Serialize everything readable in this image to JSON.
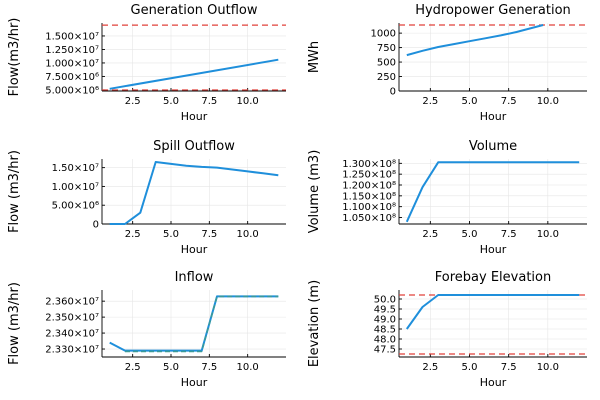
{
  "colors": {
    "series": "#1f8fdb",
    "series2": "#3a9a9a",
    "reference": "#e0403a"
  },
  "chart_data": [
    {
      "id": "generation-outflow",
      "type": "line",
      "title": "Generation Outflow",
      "xlabel": "Hour",
      "ylabel": "Flow(m3/hr)",
      "xlim": [
        0.5,
        12.5
      ],
      "ylim": [
        4800000,
        17400000
      ],
      "xticks": [
        2.5,
        5.0,
        7.5,
        10.0
      ],
      "xtick_labels": [
        "2.5",
        "5.0",
        "7.5",
        "10.0"
      ],
      "yticks": [
        5000000,
        7500000,
        10000000,
        12500000,
        15000000
      ],
      "ytick_labels": [
        "5.000×10⁶",
        "7.500×10⁶",
        "1.000×10⁷",
        "1.250×10⁷",
        "1.500×10⁷"
      ],
      "series": [
        {
          "x": [
            1,
            12
          ],
          "y": [
            5200000,
            10600000
          ]
        }
      ],
      "hlines": [
        5000000,
        17000000
      ],
      "grid": true
    },
    {
      "id": "hydropower-generation",
      "type": "line",
      "title": "Hydropower Generation",
      "xlabel": "Hour",
      "ylabel": "MWh",
      "xlim": [
        0.5,
        12.5
      ],
      "ylim": [
        0,
        1175
      ],
      "xticks": [
        2.5,
        5.0,
        7.5,
        10.0
      ],
      "xtick_labels": [
        "2.5",
        "5.0",
        "7.5",
        "10.0"
      ],
      "yticks": [
        0,
        250,
        500,
        750,
        1000
      ],
      "ytick_labels": [
        "0",
        "250",
        "500",
        "750",
        "1000"
      ],
      "series": [
        {
          "x": [
            1,
            2,
            3,
            4,
            5,
            6,
            7,
            8,
            9,
            9.7
          ],
          "y": [
            620,
            695,
            760,
            810,
            860,
            910,
            960,
            1020,
            1090,
            1140
          ]
        }
      ],
      "hlines": [
        1140
      ],
      "grid": true
    },
    {
      "id": "spill-outflow",
      "type": "line",
      "title": "Spill Outflow",
      "xlabel": "Hour",
      "ylabel": "Flow (m3/hr)",
      "xlim": [
        0.5,
        12.5
      ],
      "ylim": [
        0,
        17300000
      ],
      "xticks": [
        2.5,
        5.0,
        7.5,
        10.0
      ],
      "xtick_labels": [
        "2.5",
        "5.0",
        "7.5",
        "10.0"
      ],
      "yticks": [
        0,
        5000000,
        10000000,
        15000000
      ],
      "ytick_labels": [
        "0",
        "5.00×10⁶",
        "1.00×10⁷",
        "1.50×10⁷"
      ],
      "series": [
        {
          "x": [
            1,
            2,
            3,
            4,
            5,
            6,
            7,
            8,
            9,
            10,
            11,
            12
          ],
          "y": [
            0,
            0,
            3000000,
            16500000,
            16000000,
            15500000,
            15200000,
            15000000,
            14500000,
            14000000,
            13500000,
            13000000
          ]
        }
      ],
      "hlines": [],
      "grid": true
    },
    {
      "id": "volume",
      "type": "line",
      "title": "Volume",
      "xlabel": "Hour",
      "ylabel": "Volume (m3)",
      "xlim": [
        0.5,
        12.5
      ],
      "ylim": [
        102000000,
        132000000
      ],
      "xticks": [
        2.5,
        5.0,
        7.5,
        10.0
      ],
      "xtick_labels": [
        "2.5",
        "5.0",
        "7.5",
        "10.0"
      ],
      "yticks": [
        105000000,
        110000000,
        115000000,
        120000000,
        125000000,
        130000000
      ],
      "ytick_labels": [
        "1.050×10⁸",
        "1.100×10⁸",
        "1.150×10⁸",
        "1.200×10⁸",
        "1.250×10⁸",
        "1.300×10⁸"
      ],
      "series": [
        {
          "x": [
            1,
            2,
            3,
            4,
            5,
            6,
            7,
            8,
            9,
            10,
            11,
            12
          ],
          "y": [
            103000000,
            119000000,
            130500000,
            130500000,
            130500000,
            130500000,
            130500000,
            130500000,
            130500000,
            130500000,
            130500000,
            130500000
          ]
        }
      ],
      "hlines": [],
      "grid": true
    },
    {
      "id": "inflow",
      "type": "line",
      "title": "Inflow",
      "xlabel": "Hour",
      "ylabel": "Flow (m3/hr)",
      "xlim": [
        0.5,
        12.5
      ],
      "ylim": [
        23250000,
        23670000
      ],
      "xticks": [
        2.5,
        5.0,
        7.5,
        10.0
      ],
      "xtick_labels": [
        "2.5",
        "5.0",
        "7.5",
        "10.0"
      ],
      "yticks": [
        23300000,
        23400000,
        23500000,
        23600000
      ],
      "ytick_labels": [
        "2.330×10⁷",
        "2.340×10⁷",
        "2.350×10⁷",
        "2.360×10⁷"
      ],
      "series": [
        {
          "x": [
            1,
            2,
            3,
            4,
            5,
            6,
            7,
            8,
            9,
            10,
            11,
            12
          ],
          "y": [
            23340000,
            23290000,
            23290000,
            23290000,
            23290000,
            23290000,
            23290000,
            23630000,
            23630000,
            23630000,
            23630000,
            23630000
          ]
        },
        {
          "x": [
            2,
            3,
            4,
            5,
            6,
            7,
            8,
            9,
            10,
            11,
            12
          ],
          "y": [
            23285000,
            23285000,
            23285000,
            23285000,
            23285000,
            23285000,
            23630000,
            23630000,
            23630000,
            23630000,
            23630000
          ],
          "dashed": true
        }
      ],
      "hlines": [],
      "grid": true
    },
    {
      "id": "forebay-elevation",
      "type": "line",
      "title": "Forebay Elevation",
      "xlabel": "Hour",
      "ylabel": "Elevation (m)",
      "xlim": [
        0.5,
        12.5
      ],
      "ylim": [
        47.1,
        50.45
      ],
      "xticks": [
        2.5,
        5.0,
        7.5,
        10.0
      ],
      "xtick_labels": [
        "2.5",
        "5.0",
        "7.5",
        "10.0"
      ],
      "yticks": [
        47.5,
        48.0,
        48.5,
        49.0,
        49.5,
        50.0
      ],
      "ytick_labels": [
        "47.5",
        "48.0",
        "48.5",
        "49.0",
        "49.5",
        "50.0"
      ],
      "series": [
        {
          "x": [
            1,
            2,
            3,
            4,
            5,
            6,
            7,
            8,
            9,
            10,
            11,
            12
          ],
          "y": [
            48.5,
            49.6,
            50.2,
            50.2,
            50.2,
            50.2,
            50.2,
            50.2,
            50.2,
            50.2,
            50.2,
            50.2
          ]
        }
      ],
      "hlines": [
        50.2,
        47.25
      ],
      "grid": true
    }
  ]
}
